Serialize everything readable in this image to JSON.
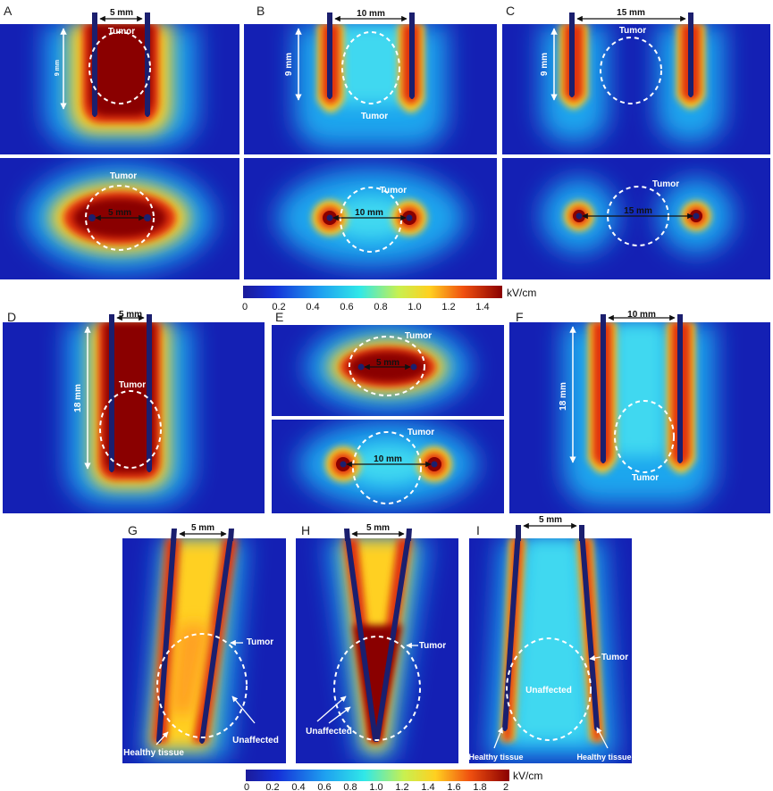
{
  "panels": {
    "A": {
      "letter": "A",
      "spacing": "5 mm",
      "depth": "9 mm",
      "tumor_top": "Tumor",
      "tumor_bottom": "Tumor",
      "spacing_bottom": "5 mm"
    },
    "B": {
      "letter": "B",
      "spacing": "10 mm",
      "depth": "9 mm",
      "tumor_top": "Tumor",
      "tumor_bottom": "Tumor",
      "spacing_bottom": "10 mm"
    },
    "C": {
      "letter": "C",
      "spacing": "15 mm",
      "depth": "9 mm",
      "tumor_top": "Tumor",
      "tumor_bottom": "Tumor",
      "spacing_bottom": "15 mm"
    },
    "D": {
      "letter": "D",
      "spacing": "5 mm",
      "depth": "18 mm",
      "tumor": "Tumor"
    },
    "E": {
      "letter": "E",
      "tumor_top": "Tumor",
      "spacing_top": "5 mm",
      "tumor_bottom": "Tumor",
      "spacing_bottom": "10 mm"
    },
    "F": {
      "letter": "F",
      "spacing": "10 mm",
      "depth": "18 mm",
      "tumor": "Tumor"
    },
    "G": {
      "letter": "G",
      "spacing": "5 mm",
      "tumor": "Tumor",
      "healthy": "Healthy tissue",
      "unaffected": "Unaffected"
    },
    "H": {
      "letter": "H",
      "spacing": "5 mm",
      "tumor": "Tumor",
      "unaffected": "Unaffected"
    },
    "I": {
      "letter": "I",
      "spacing": "5 mm",
      "tumor": "Tumor",
      "unaffected": "Unaffected",
      "healthy_left": "Healthy tissue",
      "healthy_right": "Healthy tissue"
    }
  },
  "colorbar1": {
    "unit": "kV/cm",
    "ticks": [
      "0",
      "0.2",
      "0.4",
      "0.6",
      "0.8",
      "1.0",
      "1.2",
      "1.4"
    ]
  },
  "colorbar2": {
    "unit": "kV/cm",
    "ticks": [
      "0",
      "0.2",
      "0.4",
      "0.6",
      "0.8",
      "1.0",
      "1.2",
      "1.4",
      "1.6",
      "1.8",
      "2"
    ]
  },
  "colors": {
    "background": "#1420b4",
    "electrode": "#1b1f6e",
    "max": "#8b0000"
  }
}
